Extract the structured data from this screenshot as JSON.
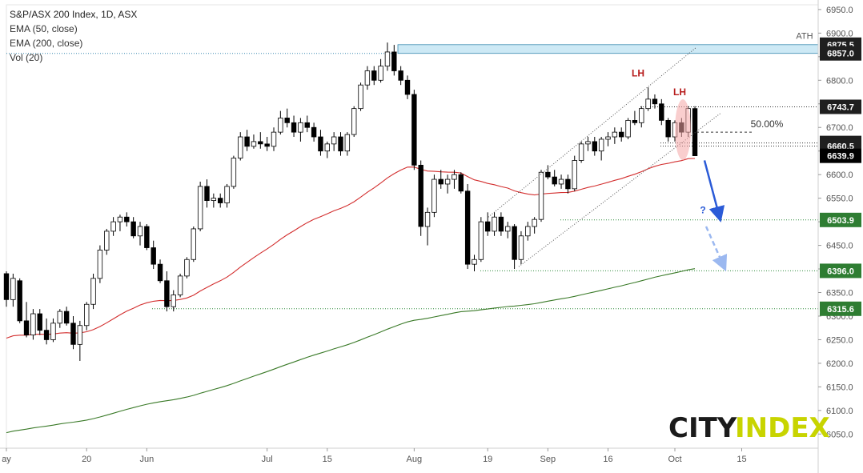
{
  "chart_data": {
    "type": "candlestick",
    "title": "S&P/ASX 200 Index, 1D, ASX",
    "legend": [
      "EMA (50, close)",
      "EMA (200, close)",
      "Vol (20)"
    ],
    "ylim": [
      6020,
      6960
    ],
    "y_ticks": [
      6050,
      6100,
      6150,
      6200,
      6250,
      6300,
      6350,
      6400,
      6450,
      6500,
      6550,
      6600,
      6650,
      6700,
      6750,
      6800,
      6850,
      6900,
      6950
    ],
    "x_ticks": [
      "ay",
      "20",
      "Jun",
      "Jul",
      "15",
      "Aug",
      "19",
      "Sep",
      "16",
      "Oct",
      "15"
    ],
    "price_levels": [
      {
        "value": 6875.5,
        "label": "6875.5",
        "style": "band-top"
      },
      {
        "value": 6857.0,
        "label": "6857.0",
        "style": "band-bottom"
      },
      {
        "value": 6743.7,
        "label": "6743.7",
        "style": "line"
      },
      {
        "value": 6667.1,
        "label": "6667.1",
        "style": "line"
      },
      {
        "value": 6660.5,
        "label": "6660.5",
        "style": "line"
      },
      {
        "value": 6639.9,
        "label": "6639.9",
        "style": "last"
      },
      {
        "value": 6503.9,
        "label": "6503.9",
        "style": "support"
      },
      {
        "value": 6396.0,
        "label": "6396.0",
        "style": "support"
      },
      {
        "value": 6315.6,
        "label": "6315.6",
        "style": "support"
      }
    ],
    "annotations": {
      "ath": "ATH",
      "lh1": "LH",
      "lh2": "LH",
      "fib": "50.00%",
      "question": "?"
    },
    "candles": [
      [
        6390,
        6395,
        6320,
        6335
      ],
      [
        6335,
        6390,
        6320,
        6380
      ],
      [
        6375,
        6380,
        6285,
        6290
      ],
      [
        6290,
        6330,
        6255,
        6260
      ],
      [
        6260,
        6315,
        6250,
        6305
      ],
      [
        6305,
        6315,
        6260,
        6270
      ],
      [
        6270,
        6295,
        6240,
        6250
      ],
      [
        6250,
        6295,
        6245,
        6285
      ],
      [
        6285,
        6315,
        6275,
        6310
      ],
      [
        6310,
        6320,
        6280,
        6285
      ],
      [
        6285,
        6300,
        6230,
        6240
      ],
      [
        6240,
        6290,
        6205,
        6280
      ],
      [
        6280,
        6330,
        6270,
        6325
      ],
      [
        6325,
        6390,
        6315,
        6380
      ],
      [
        6380,
        6450,
        6370,
        6440
      ],
      [
        6440,
        6485,
        6430,
        6480
      ],
      [
        6480,
        6510,
        6470,
        6500
      ],
      [
        6500,
        6515,
        6480,
        6510
      ],
      [
        6510,
        6520,
        6490,
        6500
      ],
      [
        6500,
        6510,
        6465,
        6470
      ],
      [
        6470,
        6500,
        6450,
        6490
      ],
      [
        6490,
        6495,
        6440,
        6445
      ],
      [
        6445,
        6460,
        6400,
        6410
      ],
      [
        6410,
        6420,
        6370,
        6375
      ],
      [
        6375,
        6395,
        6310,
        6320
      ],
      [
        6320,
        6355,
        6310,
        6345
      ],
      [
        6345,
        6390,
        6340,
        6385
      ],
      [
        6385,
        6425,
        6380,
        6420
      ],
      [
        6420,
        6490,
        6415,
        6485
      ],
      [
        6485,
        6585,
        6480,
        6575
      ],
      [
        6575,
        6590,
        6530,
        6545
      ],
      [
        6545,
        6560,
        6530,
        6550
      ],
      [
        6550,
        6560,
        6530,
        6540
      ],
      [
        6540,
        6580,
        6530,
        6575
      ],
      [
        6575,
        6640,
        6570,
        6635
      ],
      [
        6635,
        6690,
        6630,
        6680
      ],
      [
        6680,
        6695,
        6650,
        6660
      ],
      [
        6660,
        6685,
        6655,
        6670
      ],
      [
        6670,
        6690,
        6655,
        6665
      ],
      [
        6665,
        6680,
        6650,
        6660
      ],
      [
        6660,
        6700,
        6650,
        6690
      ],
      [
        6690,
        6735,
        6685,
        6720
      ],
      [
        6720,
        6740,
        6700,
        6710
      ],
      [
        6710,
        6725,
        6680,
        6690
      ],
      [
        6690,
        6720,
        6670,
        6710
      ],
      [
        6710,
        6725,
        6690,
        6700
      ],
      [
        6700,
        6710,
        6670,
        6680
      ],
      [
        6680,
        6695,
        6640,
        6650
      ],
      [
        6650,
        6670,
        6635,
        6665
      ],
      [
        6665,
        6690,
        6650,
        6680
      ],
      [
        6680,
        6690,
        6640,
        6650
      ],
      [
        6650,
        6690,
        6640,
        6685
      ],
      [
        6685,
        6745,
        6680,
        6740
      ],
      [
        6740,
        6795,
        6735,
        6790
      ],
      [
        6790,
        6830,
        6780,
        6820
      ],
      [
        6820,
        6830,
        6790,
        6800
      ],
      [
        6800,
        6845,
        6795,
        6830
      ],
      [
        6830,
        6880,
        6820,
        6860
      ],
      [
        6860,
        6875,
        6810,
        6820
      ],
      [
        6820,
        6830,
        6790,
        6800
      ],
      [
        6800,
        6810,
        6760,
        6770
      ],
      [
        6770,
        6780,
        6610,
        6620
      ],
      [
        6620,
        6630,
        6470,
        6490
      ],
      [
        6490,
        6530,
        6450,
        6520
      ],
      [
        6520,
        6600,
        6510,
        6590
      ],
      [
        6590,
        6610,
        6570,
        6580
      ],
      [
        6580,
        6600,
        6560,
        6590
      ],
      [
        6590,
        6610,
        6570,
        6600
      ],
      [
        6600,
        6605,
        6560,
        6565
      ],
      [
        6565,
        6580,
        6400,
        6410
      ],
      [
        6410,
        6430,
        6395,
        6420
      ],
      [
        6420,
        6510,
        6415,
        6500
      ],
      [
        6500,
        6520,
        6470,
        6480
      ],
      [
        6480,
        6520,
        6470,
        6510
      ],
      [
        6510,
        6520,
        6470,
        6480
      ],
      [
        6480,
        6500,
        6465,
        6490
      ],
      [
        6490,
        6495,
        6400,
        6420
      ],
      [
        6420,
        6480,
        6410,
        6470
      ],
      [
        6470,
        6500,
        6460,
        6490
      ],
      [
        6490,
        6510,
        6475,
        6505
      ],
      [
        6505,
        6610,
        6500,
        6605
      ],
      [
        6605,
        6620,
        6590,
        6595
      ],
      [
        6595,
        6610,
        6575,
        6580
      ],
      [
        6580,
        6600,
        6570,
        6590
      ],
      [
        6590,
        6600,
        6560,
        6570
      ],
      [
        6570,
        6640,
        6565,
        6630
      ],
      [
        6630,
        6670,
        6625,
        6665
      ],
      [
        6665,
        6680,
        6650,
        6670
      ],
      [
        6670,
        6680,
        6640,
        6650
      ],
      [
        6650,
        6680,
        6630,
        6675
      ],
      [
        6675,
        6690,
        6660,
        6680
      ],
      [
        6680,
        6700,
        6665,
        6690
      ],
      [
        6690,
        6700,
        6670,
        6680
      ],
      [
        6680,
        6720,
        6675,
        6715
      ],
      [
        6715,
        6735,
        6705,
        6710
      ],
      [
        6710,
        6745,
        6700,
        6740
      ],
      [
        6740,
        6785,
        6735,
        6760
      ],
      [
        6760,
        6770,
        6740,
        6750
      ],
      [
        6750,
        6760,
        6705,
        6715
      ],
      [
        6715,
        6720,
        6670,
        6680
      ],
      [
        6680,
        6715,
        6670,
        6710
      ],
      [
        6710,
        6720,
        6680,
        6690
      ],
      [
        6690,
        6745,
        6680,
        6740
      ],
      [
        6740,
        6745,
        6640,
        6640
      ]
    ]
  },
  "branding": {
    "logo_part1": "CITY",
    "logo_part2": "INDEX"
  }
}
